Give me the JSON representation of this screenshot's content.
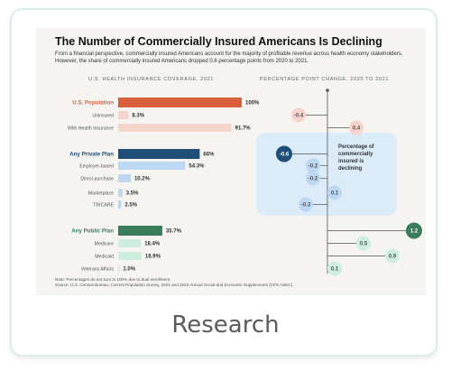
{
  "card": {
    "caption": "Research",
    "infographic": {
      "title": "The Number of Commercially Insured Americans Is Declining",
      "subtitle": "From a financial perspective, commercially insured Americans account for the majority of profitable revenue across health economy stakeholders. However, the share of commercially insured Americans dropped 0.6 percentage points from 2020 to 2021.",
      "left_heading": "U.S. HEALTH INSURANCE COVERAGE, 2021",
      "right_heading": "PERCENTAGE POINT CHANGE, 2020 TO 2021",
      "callout": "Percentage of commercially insured is declining",
      "footnote": "Note: Percentages do not sum to 100% due to dual enrollment.\nSource: U.S. Census Bureau, Current Population Survey, 2021 and 2022 Annual Social and Economic Supplements (CPS ASEC).",
      "colors": {
        "population": "#d9603b",
        "population_light": "#f6d4cc",
        "private": "#1f4e79",
        "private_light": "#bcd7f1",
        "public": "#3a7d5a",
        "public_light": "#cdeedd",
        "callout_bg": "#dcebf8"
      }
    }
  },
  "chart_data": [
    {
      "type": "bar",
      "title": "U.S. HEALTH INSURANCE COVERAGE, 2021",
      "categories": [
        "U.S. Population",
        "Uninsured",
        "With Health Insurance",
        "Any Private Plan",
        "Employer-based",
        "Direct-purchase",
        "Marketplace",
        "TRICARE",
        "Any Public Plan",
        "Medicare",
        "Medicaid",
        "Veterans Affairs"
      ],
      "values": [
        100,
        8.3,
        91.7,
        66,
        54.3,
        10.2,
        3.5,
        2.5,
        35.7,
        18.4,
        18.9,
        1.0
      ],
      "value_labels": [
        "100%",
        "8.3%",
        "91.7%",
        "66%",
        "54.3%",
        "10.2%",
        "3.5%",
        "2.5%",
        "35.7%",
        "18.4%",
        "18.9%",
        "1.0%"
      ],
      "groups": [
        "population",
        "population",
        "population",
        "private",
        "private",
        "private",
        "private",
        "private",
        "public",
        "public",
        "public",
        "public"
      ],
      "headers": [
        true,
        false,
        false,
        true,
        false,
        false,
        false,
        false,
        true,
        false,
        false,
        false
      ],
      "xlim": [
        0,
        100
      ]
    },
    {
      "type": "scatter",
      "title": "PERCENTAGE POINT CHANGE, 2020 TO 2021",
      "categories": [
        "U.S. Population",
        "Uninsured",
        "With Health Insurance",
        "Any Private Plan",
        "Employer-based",
        "Direct-purchase",
        "Marketplace",
        "TRICARE",
        "Any Public Plan",
        "Medicare",
        "Medicaid",
        "Veterans Affairs"
      ],
      "values": [
        null,
        -0.4,
        0.4,
        -0.6,
        -0.2,
        -0.2,
        0.1,
        -0.3,
        1.2,
        0.5,
        0.9,
        0.1
      ],
      "value_labels": [
        "",
        "-0.4",
        "0.4",
        "-0.6",
        "-0.2",
        "-0.2",
        "0.1",
        "-0.3",
        "1.2",
        "0.5",
        "0.9",
        "0.1"
      ],
      "xlim": [
        -1,
        1.4
      ]
    }
  ]
}
